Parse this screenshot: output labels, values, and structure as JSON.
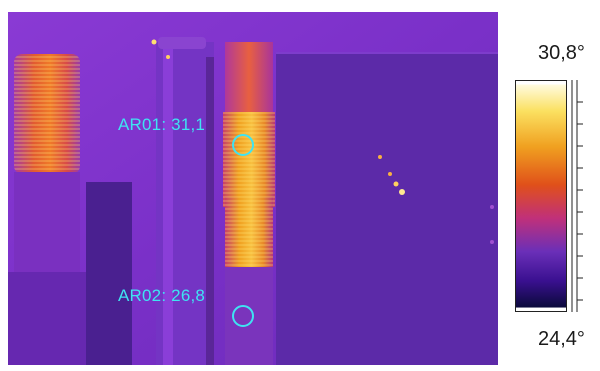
{
  "image": {
    "description_icon": "thermal-camera-image",
    "palette": [
      "#0a0a3a",
      "#3a1090",
      "#6a2fb8",
      "#8c3ad0",
      "#c0307a",
      "#e0501a",
      "#f0a020",
      "#fbe060",
      "#fffbe0"
    ]
  },
  "markers": [
    {
      "id": "AR01",
      "label": "AR01: 31,1"
    },
    {
      "id": "AR02",
      "label": "AR02: 26,8"
    }
  ],
  "scale": {
    "max_label": "30,8°",
    "min_label": "24,4°",
    "max_value": 30.8,
    "min_value": 24.4
  },
  "colors": {
    "marker": "#3fe3f2",
    "background": "#ffffff"
  }
}
